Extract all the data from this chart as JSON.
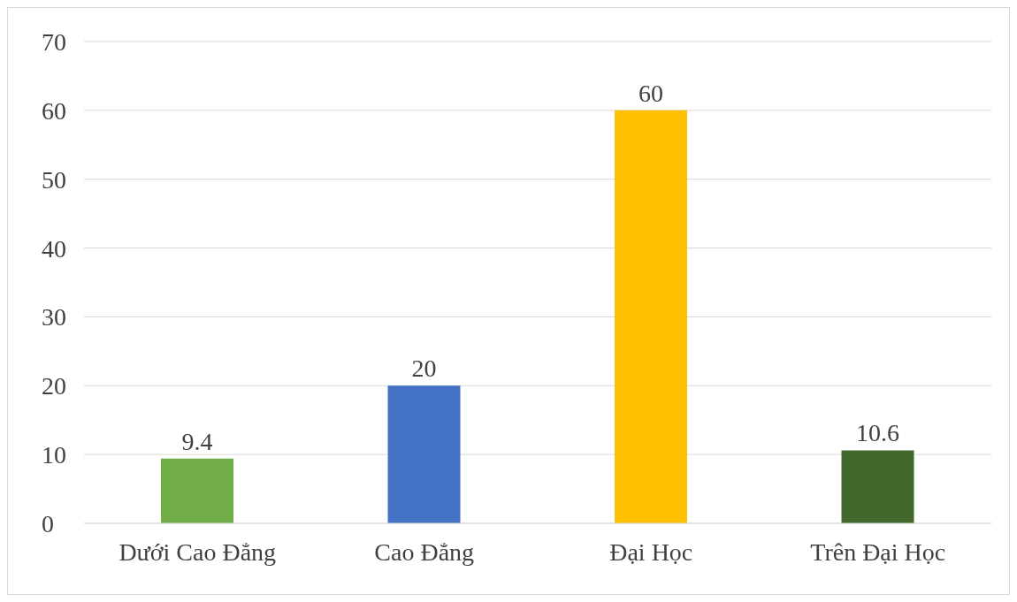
{
  "chart_data": {
    "type": "bar",
    "categories": [
      "Dưới Cao Đẳng",
      "Cao Đẳng",
      "Đại Học",
      "Trên Đại Học"
    ],
    "values": [
      9.4,
      20,
      60,
      10.6
    ],
    "colors": [
      "#70ad47",
      "#4472c4",
      "#ffc000",
      "#43682b"
    ],
    "ylim": [
      0,
      70
    ],
    "yticks": [
      0,
      10,
      20,
      30,
      40,
      50,
      60,
      70
    ],
    "grid": "y",
    "data_labels": true,
    "legend": false
  }
}
